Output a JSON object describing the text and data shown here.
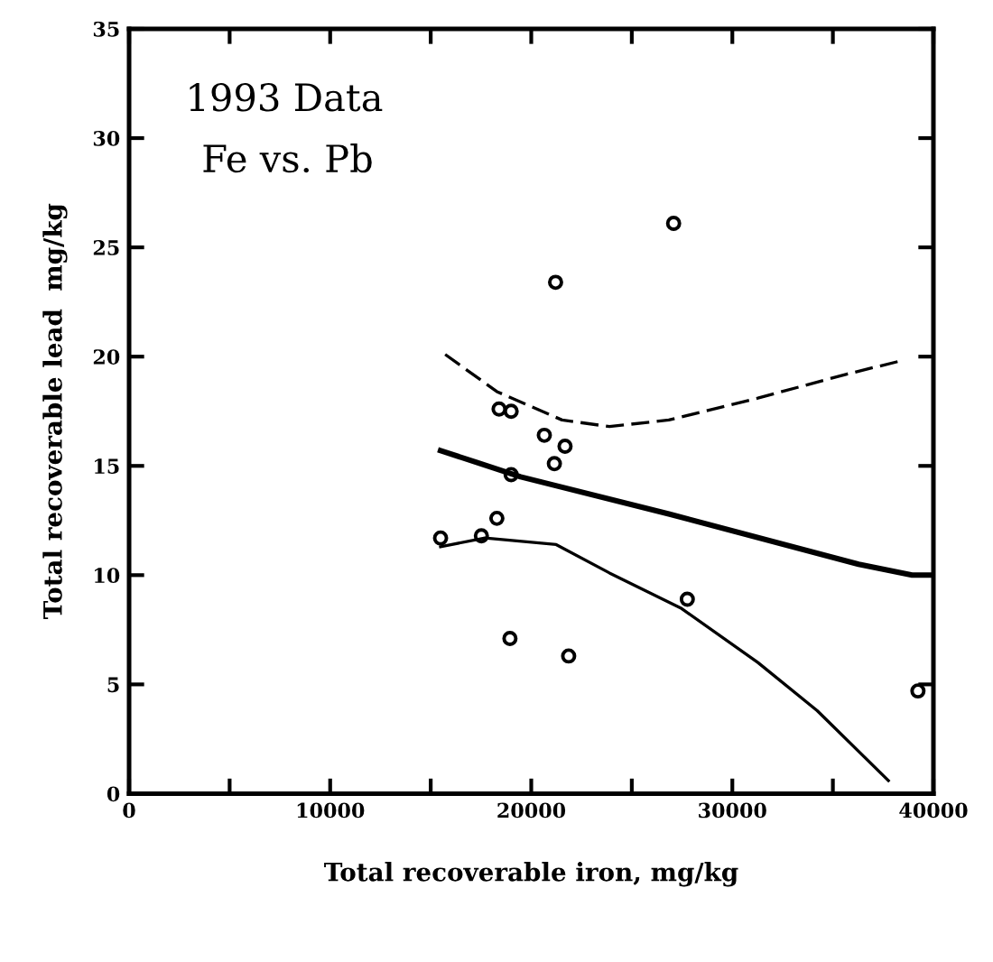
{
  "chart_data": {
    "type": "scatter",
    "xlabel": "Total recoverable iron, mg/kg",
    "ylabel": "Total recoverable lead  mg/kg",
    "annotations": [
      "1993 Data",
      "Fe vs. Pb"
    ],
    "xlim": [
      0,
      40000
    ],
    "ylim": [
      0,
      35
    ],
    "xticks": [
      0,
      {
        "value": 5000,
        "label": null
      },
      10000,
      {
        "value": 15000,
        "label": null
      },
      20000,
      {
        "value": 25000,
        "label": null
      },
      30000,
      {
        "value": 35000,
        "label": null
      },
      40000
    ],
    "yticks": [
      0,
      5,
      10,
      15,
      20,
      25,
      30,
      35
    ],
    "grid": false,
    "legend": false,
    "series": [
      {
        "color": "#000000",
        "marker": "circle",
        "x": [
          15490,
          17520,
          18290,
          18940,
          19000,
          18400,
          19000,
          20650,
          21680,
          21150,
          21210,
          21860,
          27080,
          27760,
          39230
        ],
        "values": [
          11.7,
          11.8,
          12.6,
          7.1,
          14.6,
          17.6,
          17.5,
          16.4,
          15.9,
          15.1,
          23.4,
          6.3,
          26.1,
          8.9,
          4.7
        ]
      },
      {
        "type": "line",
        "color": "#000000",
        "line_style": "solid",
        "x": [
          15490,
          19470,
          26840,
          36280,
          38940,
          40000
        ],
        "values": [
          15.7,
          14.5,
          12.8,
          10.5,
          10.0,
          10.0
        ]
      },
      {
        "type": "line",
        "color": "#000000",
        "line_style": "dashed",
        "x": [
          15720,
          18290,
          21530,
          23890,
          26840,
          31270,
          35690,
          38350
        ],
        "values": [
          20.1,
          18.4,
          17.1,
          16.8,
          17.1,
          18.1,
          19.2,
          19.8
        ]
      },
      {
        "type": "line",
        "color": "#000000",
        "line_style": "solid",
        "x": [
          15490,
          17700,
          21240,
          23890,
          27430,
          31270,
          34220,
          37760
        ],
        "values": [
          11.3,
          11.7,
          11.4,
          10.1,
          8.5,
          6.0,
          3.8,
          0.6
        ]
      }
    ]
  }
}
